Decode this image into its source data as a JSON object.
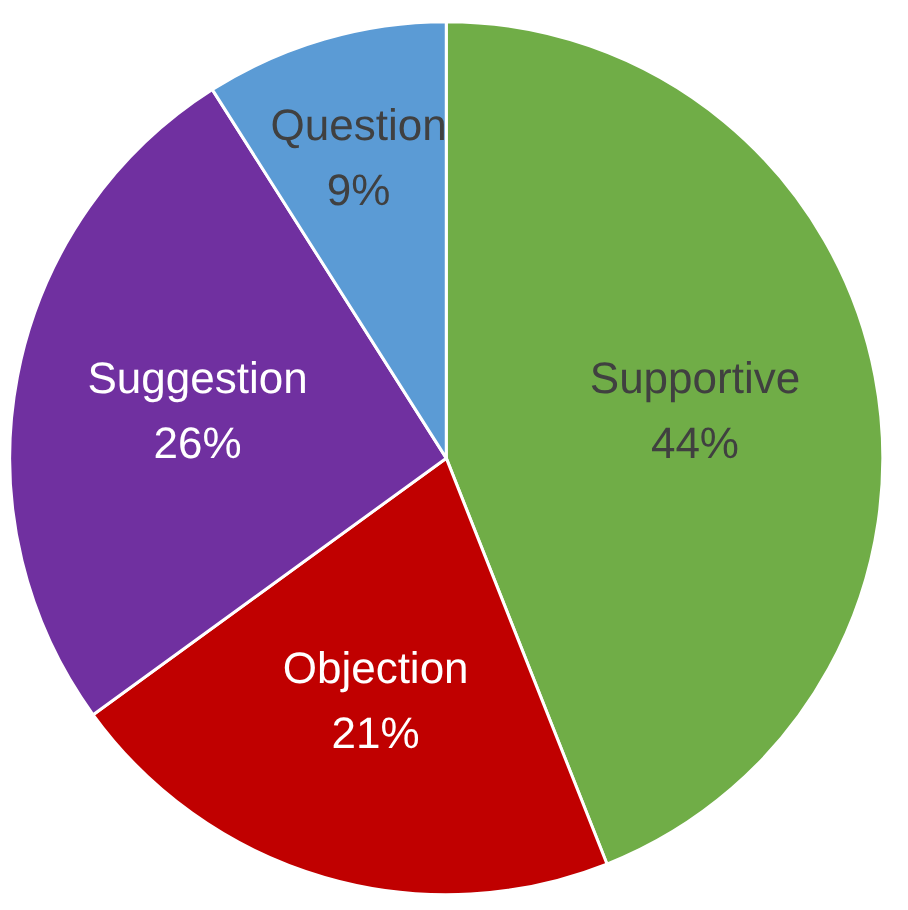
{
  "chart_data": {
    "type": "pie",
    "categories": [
      "Supportive",
      "Objection",
      "Suggestion",
      "Question"
    ],
    "values": [
      44,
      21,
      26,
      9
    ],
    "colors": [
      "#70ad47",
      "#c00000",
      "#7030a0",
      "#5b9bd5"
    ],
    "value_labels": [
      "44%",
      "21%",
      "26%",
      "9%"
    ]
  }
}
